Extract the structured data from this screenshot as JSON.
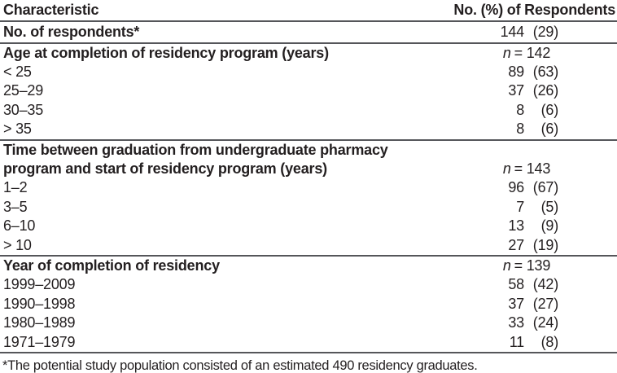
{
  "colors": {
    "text": "#231f20",
    "rule": "#55565a",
    "background": "#ffffff"
  },
  "table": {
    "header": {
      "characteristic": "Characteristic",
      "respondents": "No. (%) of Respondents"
    },
    "rows": [
      {
        "label": "No. of respondents*",
        "count": "144",
        "pct": "(29)"
      },
      {
        "label": "Age at completion of residency program (years)",
        "n_symbol": "n",
        "n_rest": "= 142"
      },
      {
        "label": "< 25",
        "count": "89",
        "pct": "(63)"
      },
      {
        "label": "25–29",
        "count": "37",
        "pct": "(26)"
      },
      {
        "label": "30–35",
        "count": "8",
        "pct": "(6)"
      },
      {
        "label": "> 35",
        "count": "8",
        "pct": "(6)"
      },
      {
        "label": "Time between graduation from undergraduate pharmacy",
        "label_line2": "program and start of residency program (years)",
        "n_symbol": "n",
        "n_rest": "= 143"
      },
      {
        "label": "1–2",
        "count": "96",
        "pct": "(67)"
      },
      {
        "label": "3–5",
        "count": "7",
        "pct": "(5)"
      },
      {
        "label": "6–10",
        "count": "13",
        "pct": "(9)"
      },
      {
        "label": "> 10",
        "count": "27",
        "pct": "(19)"
      },
      {
        "label": "Year of completion of residency",
        "n_symbol": "n",
        "n_rest": "= 139"
      },
      {
        "label": "1999–2009",
        "count": "58",
        "pct": "(42)"
      },
      {
        "label": "1990–1998",
        "count": "37",
        "pct": "(27)"
      },
      {
        "label": "1980–1989",
        "count": "33",
        "pct": "(24)"
      },
      {
        "label": "1971–1979",
        "count": "11",
        "pct": "(8)"
      }
    ],
    "footnote": "*The potential study population consisted of an estimated 490 residency graduates."
  }
}
